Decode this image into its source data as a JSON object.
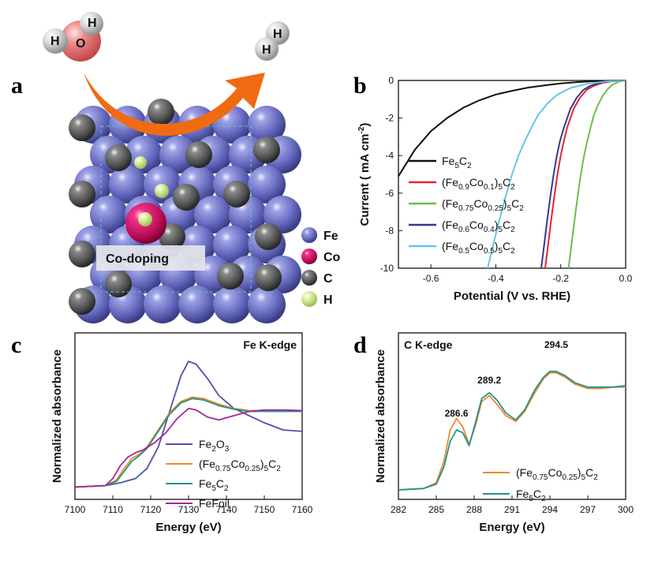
{
  "panel_labels": [
    "a",
    "b",
    "c",
    "d"
  ],
  "panel_a": {
    "water_atoms": [
      "H",
      "O",
      "H"
    ],
    "hydrogen_atoms": [
      "H",
      "H"
    ],
    "codoping_label": "Co-doping",
    "legend": [
      {
        "label": "Fe",
        "color": "#7b7fd0"
      },
      {
        "label": "Co",
        "color": "#e0176e"
      },
      {
        "label": "C",
        "color": "#6b6b6b"
      },
      {
        "label": "H",
        "color": "#d7ee9a"
      }
    ],
    "arrow_color": "#f06a12"
  },
  "chart_data": [
    {
      "type": "line",
      "panel": "b",
      "xlabel": "Potential (V vs. RHE)",
      "ylabel": "Current ( mA cm-2)",
      "xlim": [
        -0.7,
        0.0
      ],
      "ylim": [
        -10,
        0
      ],
      "xticks": [
        "-0.6",
        "-0.4",
        "-0.2",
        "0.0"
      ],
      "yticks": [
        "0",
        "-2",
        "-4",
        "-6",
        "-8",
        "-10"
      ],
      "legend_position": "left",
      "series": [
        {
          "name": "Fe5C2",
          "color": "#111111",
          "x": [
            -0.7,
            -0.65,
            -0.6,
            -0.55,
            -0.5,
            -0.45,
            -0.4,
            -0.35,
            -0.3,
            -0.25,
            -0.2,
            -0.15,
            -0.1,
            -0.05,
            0.0
          ],
          "y": [
            -5.1,
            -3.7,
            -2.7,
            -2.0,
            -1.45,
            -1.05,
            -0.75,
            -0.55,
            -0.38,
            -0.26,
            -0.16,
            -0.09,
            -0.04,
            -0.01,
            0.0
          ]
        },
        {
          "name": "(Fe0.9Co0.1)5C2",
          "color": "#e0262e",
          "x": [
            -0.248,
            -0.24,
            -0.23,
            -0.22,
            -0.21,
            -0.2,
            -0.19,
            -0.18,
            -0.16,
            -0.14,
            -0.12,
            -0.1,
            -0.07,
            -0.04,
            0.0
          ],
          "y": [
            -10.0,
            -8.9,
            -7.5,
            -6.2,
            -5.0,
            -4.0,
            -3.2,
            -2.5,
            -1.5,
            -0.9,
            -0.5,
            -0.3,
            -0.12,
            -0.04,
            0.0
          ]
        },
        {
          "name": "(Fe0.75Co0.25)5C2",
          "color": "#6cbd4e",
          "x": [
            -0.176,
            -0.168,
            -0.158,
            -0.148,
            -0.138,
            -0.128,
            -0.118,
            -0.108,
            -0.098,
            -0.085,
            -0.07,
            -0.055,
            -0.04,
            -0.02,
            0.0
          ],
          "y": [
            -10.0,
            -8.9,
            -7.5,
            -6.2,
            -5.0,
            -4.0,
            -3.2,
            -2.5,
            -1.85,
            -1.3,
            -0.8,
            -0.45,
            -0.22,
            -0.06,
            0.0
          ]
        },
        {
          "name": "(Fe0.6Co0.4)5C2",
          "color": "#333a8c",
          "x": [
            -0.26,
            -0.252,
            -0.242,
            -0.232,
            -0.222,
            -0.212,
            -0.202,
            -0.19,
            -0.17,
            -0.15,
            -0.13,
            -0.11,
            -0.08,
            -0.05,
            0.0
          ],
          "y": [
            -10.0,
            -8.9,
            -7.5,
            -6.2,
            -5.0,
            -4.0,
            -3.2,
            -2.5,
            -1.5,
            -0.9,
            -0.5,
            -0.3,
            -0.12,
            -0.04,
            0.0
          ]
        },
        {
          "name": "(Fe0.5Co0.5)5C2",
          "color": "#66c6e2",
          "x": [
            -0.425,
            -0.41,
            -0.39,
            -0.37,
            -0.35,
            -0.33,
            -0.31,
            -0.29,
            -0.27,
            -0.24,
            -0.21,
            -0.17,
            -0.12,
            -0.06,
            0.0
          ],
          "y": [
            -10.0,
            -8.9,
            -7.5,
            -6.2,
            -5.0,
            -4.0,
            -3.2,
            -2.5,
            -1.85,
            -1.2,
            -0.75,
            -0.4,
            -0.18,
            -0.05,
            0.0
          ]
        }
      ]
    },
    {
      "type": "line",
      "panel": "c",
      "xlabel": "Energy (eV)",
      "ylabel": "Normalized absorbance",
      "annotation": "Fe K-edge",
      "xlim": [
        7100,
        7160
      ],
      "xticks": [
        "7100",
        "7110",
        "7120",
        "7130",
        "7140",
        "7150",
        "7160"
      ],
      "legend_position": "bottom-center",
      "series": [
        {
          "name": "Fe2O3",
          "color": "#5050a8",
          "x": [
            7100,
            7108,
            7112,
            7116,
            7119,
            7122,
            7125,
            7128,
            7130,
            7132,
            7135,
            7138,
            7142,
            7146,
            7150,
            7155,
            7160
          ],
          "y": [
            0.02,
            0.03,
            0.05,
            0.08,
            0.15,
            0.3,
            0.55,
            0.8,
            0.9,
            0.88,
            0.78,
            0.66,
            0.57,
            0.52,
            0.47,
            0.42,
            0.41
          ]
        },
        {
          "name": "(Fe0.75Co0.25)5C2",
          "color": "#f08a2a",
          "x": [
            7100,
            7108,
            7111,
            7113,
            7115,
            7117,
            7119,
            7122,
            7125,
            7128,
            7131,
            7134,
            7138,
            7142,
            7146,
            7150,
            7155,
            7160
          ],
          "y": [
            0.02,
            0.03,
            0.07,
            0.15,
            0.22,
            0.25,
            0.3,
            0.42,
            0.54,
            0.62,
            0.65,
            0.64,
            0.6,
            0.57,
            0.555,
            0.555,
            0.555,
            0.55
          ]
        },
        {
          "name": "Fe5C2",
          "color": "#22928a",
          "x": [
            7100,
            7108,
            7111,
            7113,
            7115,
            7117,
            7119,
            7122,
            7125,
            7128,
            7131,
            7134,
            7138,
            7142,
            7146,
            7150,
            7155,
            7160
          ],
          "y": [
            0.02,
            0.03,
            0.06,
            0.13,
            0.2,
            0.24,
            0.29,
            0.41,
            0.53,
            0.61,
            0.64,
            0.63,
            0.59,
            0.565,
            0.55,
            0.55,
            0.55,
            0.55
          ]
        },
        {
          "name": "Fe Foil",
          "color": "#a3289a",
          "x": [
            7100,
            7108,
            7110,
            7112,
            7114,
            7116,
            7118,
            7121,
            7124,
            7127,
            7130,
            7132,
            7135,
            7138,
            7142,
            7146,
            7150,
            7155,
            7160
          ],
          "y": [
            0.02,
            0.03,
            0.08,
            0.17,
            0.23,
            0.26,
            0.28,
            0.33,
            0.4,
            0.5,
            0.57,
            0.56,
            0.51,
            0.49,
            0.52,
            0.55,
            0.56,
            0.56,
            0.555
          ]
        }
      ]
    },
    {
      "type": "line",
      "panel": "d",
      "xlabel": "Energy (eV)",
      "ylabel": "Normalized absorbance",
      "annotation": "C K-edge",
      "xlim": [
        282,
        300
      ],
      "xticks": [
        "282",
        "285",
        "288",
        "291",
        "294",
        "297",
        "300"
      ],
      "peak_labels": [
        {
          "x": 286.6,
          "label": "286.6"
        },
        {
          "x": 289.2,
          "label": "289.2"
        },
        {
          "x": 294.5,
          "label": "294.5"
        }
      ],
      "legend_position": "bottom-right",
      "series": [
        {
          "name": "(Fe0.75Co0.25)5C2",
          "color": "#f08a2a",
          "x": [
            282,
            284,
            285,
            285.6,
            286.1,
            286.6,
            287.1,
            287.6,
            288.1,
            288.6,
            289.2,
            289.8,
            290.5,
            291.3,
            292.0,
            292.8,
            293.5,
            294.0,
            294.5,
            295.2,
            296.0,
            297,
            298,
            299,
            300
          ],
          "y": [
            0.0,
            0.01,
            0.05,
            0.2,
            0.42,
            0.5,
            0.44,
            0.32,
            0.45,
            0.62,
            0.66,
            0.6,
            0.52,
            0.48,
            0.55,
            0.68,
            0.78,
            0.82,
            0.82,
            0.79,
            0.74,
            0.71,
            0.71,
            0.72,
            0.72
          ]
        },
        {
          "name": "Fe5C2",
          "color": "#22928a",
          "x": [
            282,
            284,
            285,
            285.6,
            286.1,
            286.6,
            287.1,
            287.6,
            288.1,
            288.6,
            289.2,
            289.8,
            290.5,
            291.3,
            292.0,
            292.8,
            293.5,
            294.0,
            294.5,
            295.2,
            296.0,
            297,
            298,
            299,
            300
          ],
          "y": [
            0.0,
            0.01,
            0.04,
            0.16,
            0.34,
            0.42,
            0.4,
            0.31,
            0.47,
            0.64,
            0.68,
            0.63,
            0.54,
            0.49,
            0.56,
            0.7,
            0.79,
            0.83,
            0.83,
            0.8,
            0.75,
            0.72,
            0.72,
            0.72,
            0.73
          ]
        }
      ]
    }
  ]
}
